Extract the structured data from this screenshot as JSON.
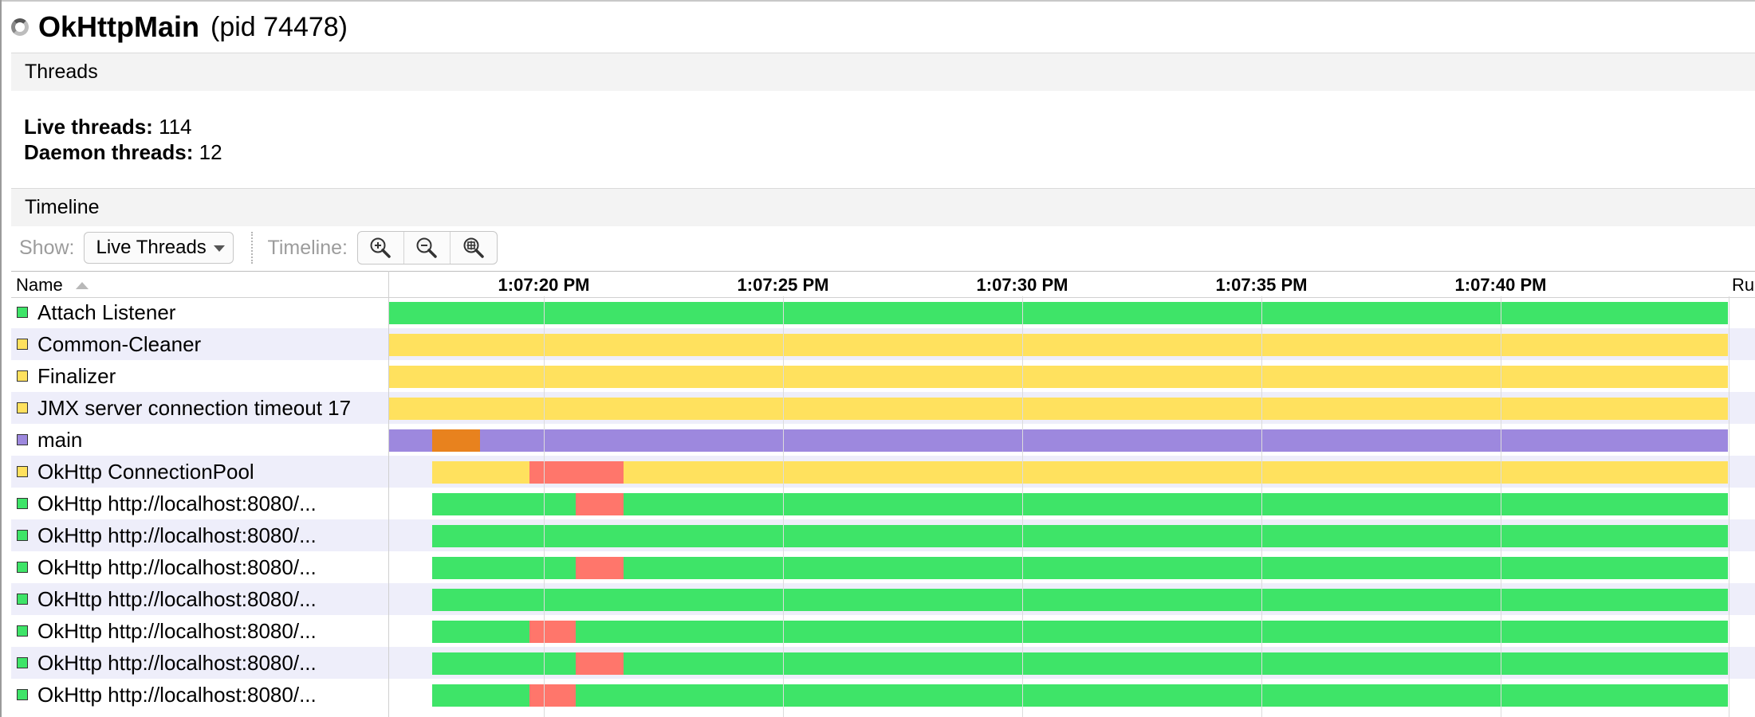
{
  "header": {
    "app_name": "OkHttpMain",
    "pid_label": "(pid 74478)"
  },
  "threads_section": {
    "title": "Threads",
    "live_label": "Live threads:",
    "live_value": "114",
    "daemon_label": "Daemon threads:",
    "daemon_value": "12"
  },
  "timeline_section": {
    "title": "Timeline",
    "show_label": "Show:",
    "show_value": "Live Threads",
    "timeline_label": "Timeline:",
    "zoom_buttons": [
      "zoom-in-icon",
      "zoom-out-icon",
      "zoom-fit-icon"
    ]
  },
  "table": {
    "name_header": "Name",
    "ticks": [
      "1:07:20 PM",
      "1:07:25 PM",
      "1:07:30 PM",
      "1:07:35 PM",
      "1:07:40 PM"
    ],
    "next_column_header": "Ru"
  },
  "colors": {
    "running": "#3ee468",
    "waiting": "#ffe15e",
    "monitor": "#ff766b",
    "sleeping": "#9d88de",
    "park": "#e8821e"
  },
  "threads": [
    {
      "name": "Attach Listener",
      "state_color": "running"
    },
    {
      "name": "Common-Cleaner",
      "state_color": "waiting"
    },
    {
      "name": "Finalizer",
      "state_color": "waiting"
    },
    {
      "name": "JMX server connection timeout 17",
      "state_color": "waiting"
    },
    {
      "name": "main",
      "state_color": "sleeping"
    },
    {
      "name": "OkHttp ConnectionPool",
      "state_color": "waiting"
    },
    {
      "name": "OkHttp http://localhost:8080/...",
      "state_color": "running"
    },
    {
      "name": "OkHttp http://localhost:8080/...",
      "state_color": "running"
    },
    {
      "name": "OkHttp http://localhost:8080/...",
      "state_color": "running"
    },
    {
      "name": "OkHttp http://localhost:8080/...",
      "state_color": "running"
    },
    {
      "name": "OkHttp http://localhost:8080/...",
      "state_color": "running"
    },
    {
      "name": "OkHttp http://localhost:8080/...",
      "state_color": "running"
    },
    {
      "name": "OkHttp http://localhost:8080/...",
      "state_color": "running"
    }
  ]
}
